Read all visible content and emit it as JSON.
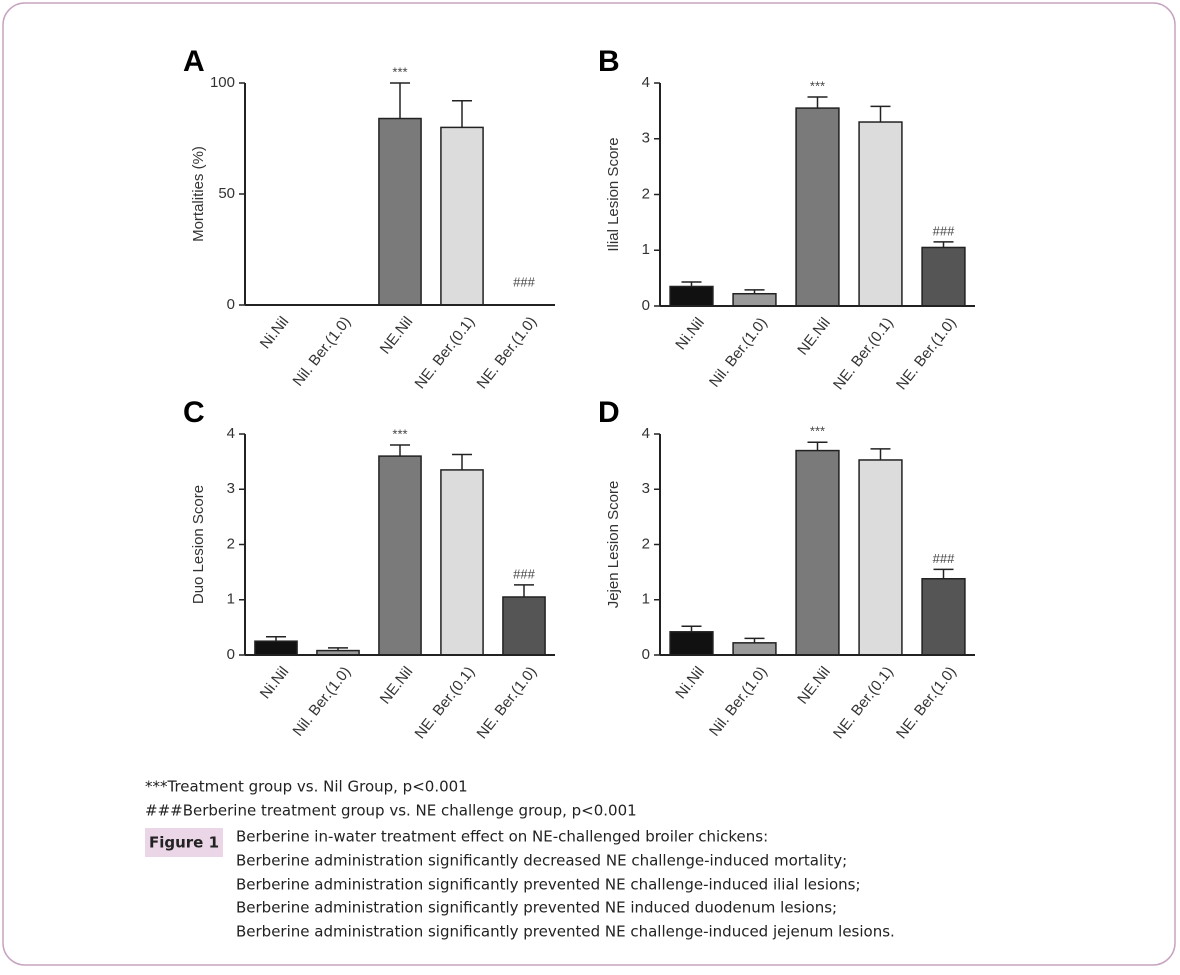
{
  "chart_data": [
    {
      "type": "bar",
      "panel": "A",
      "ylabel": "Mortalities (%)",
      "categories": [
        "Ni.Nil",
        "Nil. Ber.(1.0)",
        "NE.Nil",
        "NE. Ber.(0.1)",
        "NE. Ber.(1.0)"
      ],
      "values": [
        0,
        0,
        84,
        80,
        0
      ],
      "errors": [
        0,
        0,
        16,
        12,
        0
      ],
      "value_annotations": [
        null,
        null,
        "***",
        null,
        "###"
      ],
      "colors": [
        "#111111",
        "#9a9a9a",
        "#7a7a7a",
        "#dcdcdc",
        "#555555"
      ],
      "ylim": [
        0,
        100
      ],
      "yticks": [
        0,
        50,
        100
      ]
    },
    {
      "type": "bar",
      "panel": "B",
      "ylabel": "Ilial Lesion Score",
      "categories": [
        "Ni.Nil",
        "Nil. Ber.(1.0)",
        "NE.Nil",
        "NE. Ber.(0.1)",
        "NE. Ber.(1.0)"
      ],
      "values": [
        0.35,
        0.22,
        3.55,
        3.3,
        1.05
      ],
      "errors": [
        0.08,
        0.07,
        0.2,
        0.28,
        0.1
      ],
      "value_annotations": [
        null,
        null,
        "***",
        null,
        "###"
      ],
      "colors": [
        "#111111",
        "#9a9a9a",
        "#7a7a7a",
        "#dcdcdc",
        "#555555"
      ],
      "ylim": [
        0,
        4
      ],
      "yticks": [
        0,
        1,
        2,
        3,
        4
      ]
    },
    {
      "type": "bar",
      "panel": "C",
      "ylabel": "Duo Lesion Score",
      "categories": [
        "Ni.Nil",
        "Nil. Ber.(1.0)",
        "NE.Nil",
        "NE. Ber.(0.1)",
        "NE. Ber.(1.0)"
      ],
      "values": [
        0.25,
        0.08,
        3.6,
        3.35,
        1.05
      ],
      "errors": [
        0.08,
        0.05,
        0.2,
        0.28,
        0.22
      ],
      "value_annotations": [
        null,
        null,
        "***",
        null,
        "###"
      ],
      "colors": [
        "#111111",
        "#9a9a9a",
        "#7a7a7a",
        "#dcdcdc",
        "#555555"
      ],
      "ylim": [
        0,
        4
      ],
      "yticks": [
        0,
        1,
        2,
        3,
        4
      ]
    },
    {
      "type": "bar",
      "panel": "D",
      "ylabel": "Jejen Lesion Score",
      "categories": [
        "Ni.Nil",
        "Nil. Ber.(1.0)",
        "NE.Nil",
        "NE. Ber.(0.1)",
        "NE. Ber.(1.0)"
      ],
      "values": [
        0.42,
        0.22,
        3.7,
        3.53,
        1.38
      ],
      "errors": [
        0.1,
        0.08,
        0.15,
        0.2,
        0.17
      ],
      "value_annotations": [
        null,
        null,
        "***",
        null,
        "###"
      ],
      "colors": [
        "#111111",
        "#9a9a9a",
        "#7a7a7a",
        "#dcdcdc",
        "#555555"
      ],
      "ylim": [
        0,
        4
      ],
      "yticks": [
        0,
        1,
        2,
        3,
        4
      ]
    }
  ],
  "notes": [
    "***Treatment group vs. Nil Group, p<0.001",
    "###Berberine treatment group vs. NE challenge group, p<0.001"
  ],
  "figure": {
    "label": "Figure 1",
    "caption": [
      "Berberine in-water treatment effect on NE-challenged broiler chickens:",
      "Berberine administration significantly decreased NE challenge-induced mortality;",
      "Berberine administration significantly prevented NE challenge-induced ilial lesions;",
      "Berberine administration significantly prevented NE induced duodenum lesions;",
      "Berberine administration significantly prevented NE challenge-induced jejenum lesions."
    ]
  }
}
